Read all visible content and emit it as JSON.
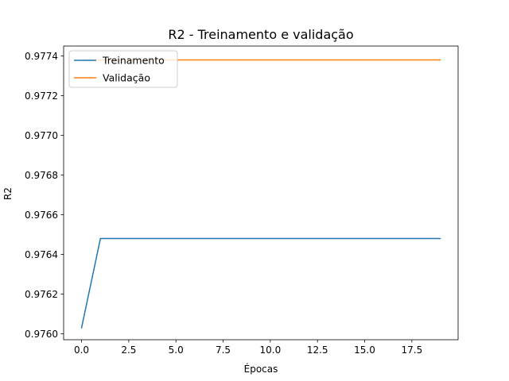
{
  "chart_data": {
    "type": "line",
    "title": "R2 - Treinamento e validação",
    "xlabel": "Épocas",
    "ylabel": "R2",
    "xlim": [
      -0.95,
      19.95
    ],
    "ylim": [
      0.97597,
      0.97745
    ],
    "xticks": [
      0.0,
      2.5,
      5.0,
      7.5,
      10.0,
      12.5,
      15.0,
      17.5
    ],
    "xtick_labels": [
      "0.0",
      "2.5",
      "5.0",
      "7.5",
      "10.0",
      "12.5",
      "15.0",
      "17.5"
    ],
    "yticks": [
      0.976,
      0.9762,
      0.9764,
      0.9766,
      0.9768,
      0.977,
      0.9772,
      0.9774
    ],
    "ytick_labels": [
      "0.9760",
      "0.9762",
      "0.9764",
      "0.9766",
      "0.9768",
      "0.9770",
      "0.9772",
      "0.9774"
    ],
    "grid": false,
    "legend_position": "top-left",
    "x": [
      0,
      1,
      2,
      3,
      4,
      5,
      6,
      7,
      8,
      9,
      10,
      11,
      12,
      13,
      14,
      15,
      16,
      17,
      18,
      19
    ],
    "series": [
      {
        "name": "Treinamento",
        "color": "#1f77b4",
        "values": [
          0.97603,
          0.97648,
          0.97648,
          0.97648,
          0.97648,
          0.97648,
          0.97648,
          0.97648,
          0.97648,
          0.97648,
          0.97648,
          0.97648,
          0.97648,
          0.97648,
          0.97648,
          0.97648,
          0.97648,
          0.97648,
          0.97648,
          0.97648
        ]
      },
      {
        "name": "Validação",
        "color": "#ff7f0e",
        "values": [
          0.97738,
          0.97738,
          0.97738,
          0.97738,
          0.97738,
          0.97738,
          0.97738,
          0.97738,
          0.97738,
          0.97738,
          0.97738,
          0.97738,
          0.97738,
          0.97738,
          0.97738,
          0.97738,
          0.97738,
          0.97738,
          0.97738,
          0.97738
        ]
      }
    ]
  }
}
